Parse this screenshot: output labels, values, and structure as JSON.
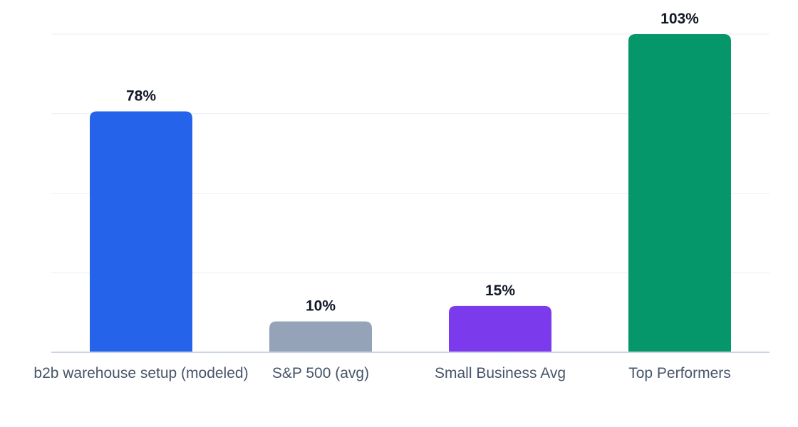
{
  "chart_data": {
    "type": "bar",
    "categories": [
      "b2b warehouse setup (modeled)",
      "S&P 500 (avg)",
      "Small Business Avg",
      "Top Performers"
    ],
    "values": [
      78,
      10,
      15,
      103
    ],
    "value_labels": [
      "78%",
      "10%",
      "15%",
      "103%"
    ],
    "colors": [
      "#2563eb",
      "#94a3b8",
      "#7c3aed",
      "#059669"
    ],
    "title": "",
    "xlabel": "",
    "ylabel": "",
    "ylim": [
      0,
      103
    ],
    "grid": true,
    "legend": "none"
  }
}
